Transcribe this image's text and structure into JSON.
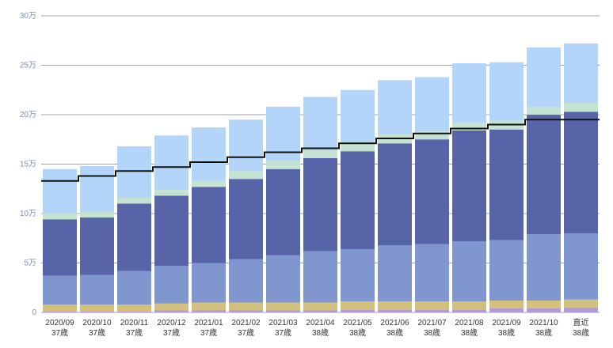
{
  "chart_data": {
    "type": "bar",
    "stacked": true,
    "title": "",
    "xlabel": "",
    "ylabel": "",
    "ylim": [
      0,
      300000
    ],
    "yticks": [
      0,
      50000,
      100000,
      150000,
      200000,
      250000,
      300000
    ],
    "ytick_labels": [
      "0",
      "5万",
      "10万",
      "15万",
      "20万",
      "25万",
      "30万"
    ],
    "grid": true,
    "legend": "none",
    "categories": [
      "2020/09",
      "2020/10",
      "2020/11",
      "2020/12",
      "2021/01",
      "2021/02",
      "2021/03",
      "2021/04",
      "2021/05",
      "2021/06",
      "2021/07",
      "2021/08",
      "2021/09",
      "2021/10",
      "直近"
    ],
    "category_sublabels": [
      "37歳",
      "37歳",
      "37歳",
      "37歳",
      "37歳",
      "37歳",
      "37歳",
      "38歳",
      "38歳",
      "38歳",
      "38歳",
      "38歳",
      "38歳",
      "38歳",
      "38歳"
    ],
    "series": [
      {
        "color": "#b49ad6",
        "values": [
          1000,
          1000,
          1000,
          2000,
          2000,
          2000,
          2000,
          2000,
          3000,
          3000,
          3000,
          3000,
          4000,
          4000,
          5000
        ]
      },
      {
        "color": "#d3c07a",
        "values": [
          7000,
          7000,
          7000,
          7000,
          8000,
          8000,
          8000,
          8000,
          8000,
          8000,
          8000,
          8000,
          8000,
          8000,
          8000
        ]
      },
      {
        "color": "#7f96cf",
        "values": [
          29000,
          30000,
          34000,
          38000,
          40000,
          44000,
          48000,
          52000,
          53000,
          57000,
          58000,
          61000,
          61000,
          67000,
          67000
        ]
      },
      {
        "color": "#5864a8",
        "values": [
          57000,
          58000,
          68000,
          71000,
          77000,
          81000,
          87000,
          94000,
          99000,
          103000,
          106000,
          112000,
          112000,
          121000,
          123000
        ]
      },
      {
        "color": "#c5e3d2",
        "values": [
          6000,
          6000,
          6000,
          6000,
          6000,
          8000,
          8000,
          8000,
          9000,
          9000,
          8000,
          8000,
          9000,
          8000,
          9000
        ]
      },
      {
        "color": "#b3d5f9",
        "values": [
          45000,
          46000,
          52000,
          55000,
          54000,
          52000,
          55000,
          54000,
          53000,
          55000,
          55000,
          60000,
          59000,
          60000,
          60000
        ]
      }
    ],
    "line": {
      "color": "#111111",
      "style": "step",
      "values": [
        133000,
        138000,
        143000,
        147000,
        152000,
        157000,
        162000,
        166000,
        171000,
        176000,
        181000,
        186000,
        190000,
        195000,
        195000
      ]
    }
  }
}
